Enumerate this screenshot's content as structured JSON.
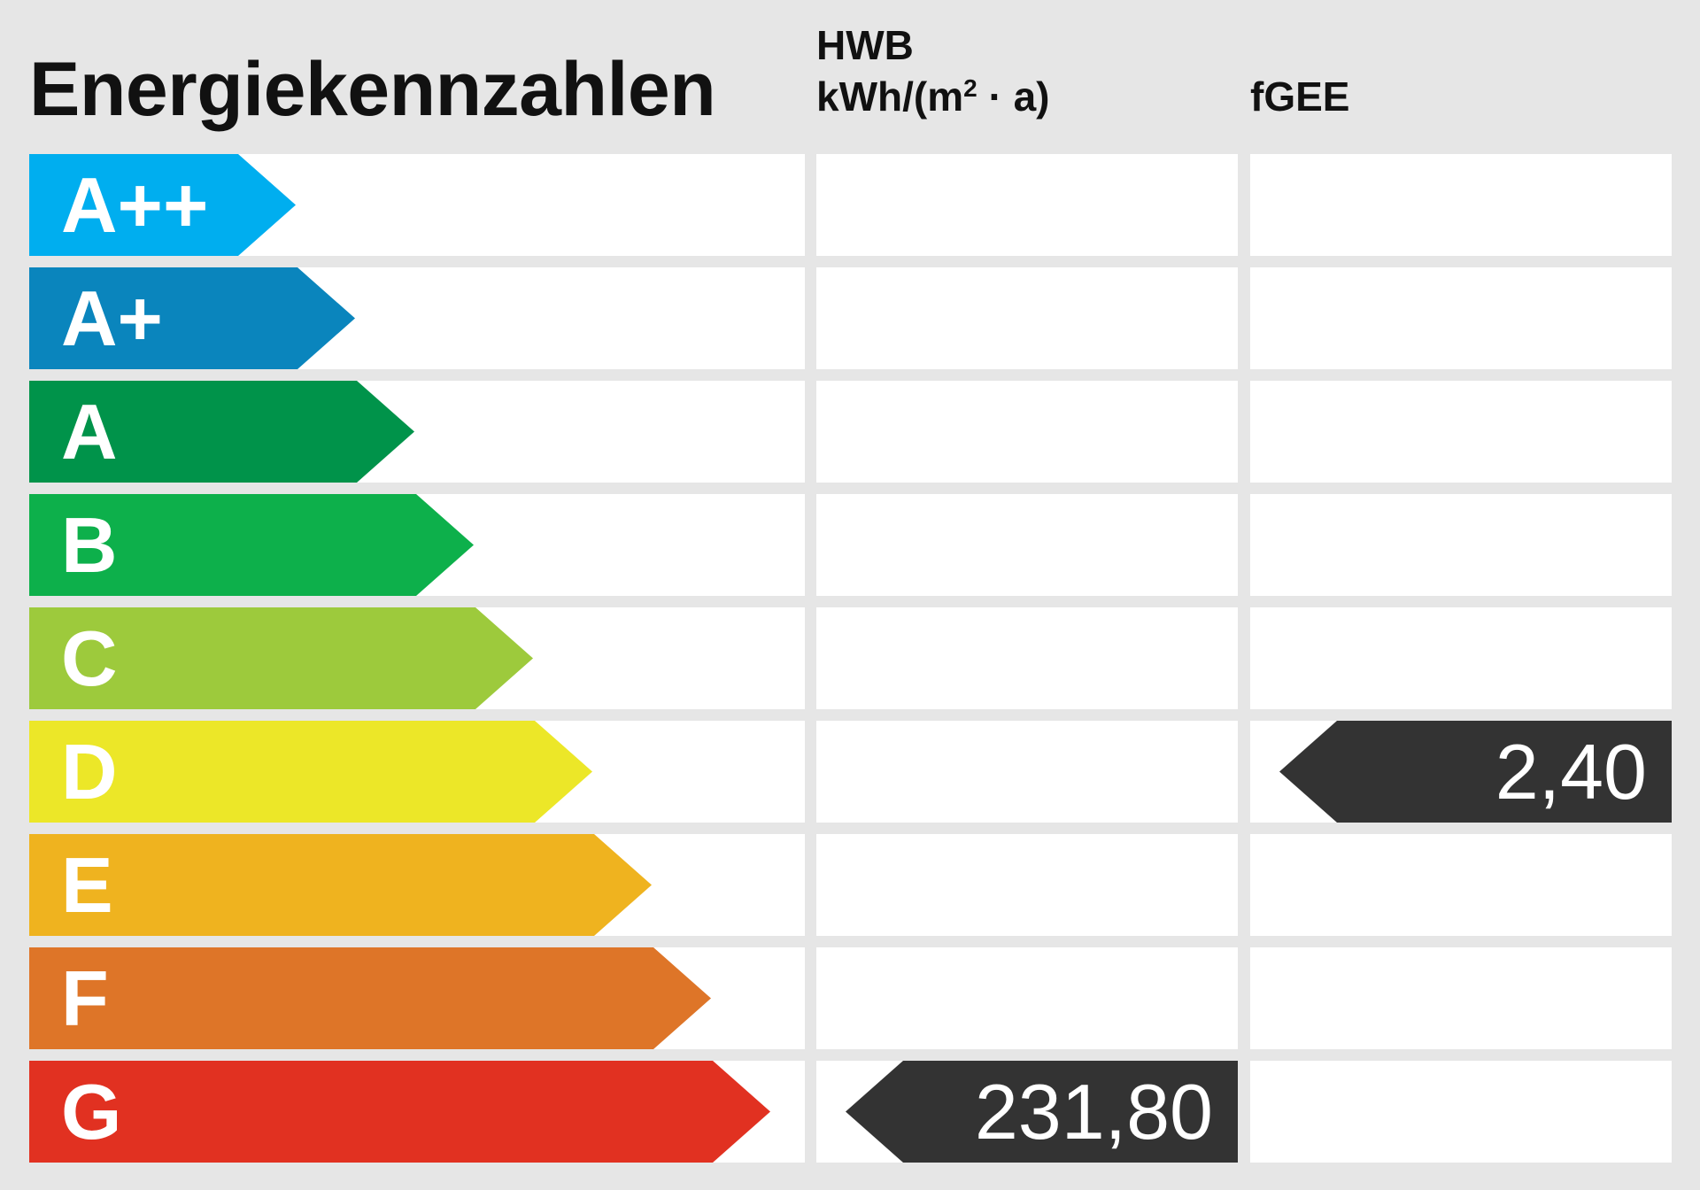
{
  "title": "Energiekennzahlen",
  "columns": {
    "hwb": {
      "label": "HWB",
      "unit_prefix": "kWh/(m",
      "unit_sup": "2",
      "unit_suffix": " · a)"
    },
    "fgee": {
      "label": "fGEE"
    }
  },
  "classes": [
    {
      "label": "A++",
      "color": "#00aeef"
    },
    {
      "label": "A+",
      "color": "#0a85bd"
    },
    {
      "label": "A",
      "color": "#00934a"
    },
    {
      "label": "B",
      "color": "#0db04b"
    },
    {
      "label": "C",
      "color": "#9dca3c"
    },
    {
      "label": "D",
      "color": "#ece728"
    },
    {
      "label": "E",
      "color": "#efb31f"
    },
    {
      "label": "F",
      "color": "#de7528"
    },
    {
      "label": "G",
      "color": "#e13121"
    }
  ],
  "values": {
    "hwb": {
      "value": "231,80",
      "class": "G"
    },
    "fgee": {
      "value": "2,40",
      "class": "D"
    }
  },
  "marker_color": "#333333",
  "background_color": "#e6e6e6"
}
